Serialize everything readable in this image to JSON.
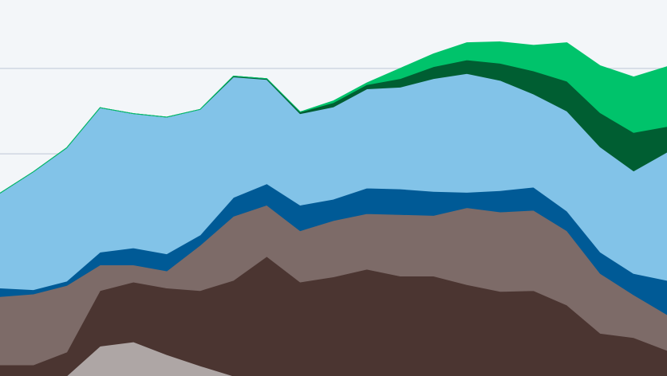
{
  "chart_data": {
    "type": "area",
    "stacked": true,
    "x": [
      0,
      1,
      2,
      3,
      4,
      5,
      6,
      7,
      8,
      9,
      10,
      11,
      12,
      13,
      14,
      15,
      16,
      17,
      18,
      19,
      20
    ],
    "ylim": [
      0,
      4.4
    ],
    "gridlines": [
      2.6,
      3.6
    ],
    "grid": true,
    "legend": "none",
    "series": [
      {
        "color": "#aea6a5",
        "values": [
          0,
          0,
          0,
          0.35,
          0.4,
          0.25,
          0.12,
          0,
          0,
          0,
          0,
          0,
          0,
          0,
          0,
          0,
          0,
          0,
          0,
          0,
          0
        ]
      },
      {
        "color": "#4b3531",
        "values": [
          0.13,
          0.13,
          0.28,
          0.65,
          0.7,
          0.78,
          0.88,
          1.12,
          1.4,
          1.1,
          1.16,
          1.25,
          1.17,
          1.17,
          1.07,
          0.99,
          1.0,
          0.83,
          0.5,
          0.45,
          0.3
        ]
      },
      {
        "color": "#7d6b68",
        "values": [
          0.8,
          0.83,
          0.78,
          0.3,
          0.2,
          0.2,
          0.53,
          0.75,
          0.6,
          0.6,
          0.66,
          0.65,
          0.72,
          0.71,
          0.9,
          0.93,
          0.94,
          0.87,
          0.7,
          0.5,
          0.42
        ]
      },
      {
        "color": "#005a96",
        "values": [
          0.1,
          0.05,
          0.05,
          0.15,
          0.2,
          0.2,
          0.12,
          0.22,
          0.25,
          0.3,
          0.25,
          0.3,
          0.3,
          0.28,
          0.18,
          0.25,
          0.27,
          0.23,
          0.25,
          0.25,
          0.4
        ]
      },
      {
        "color": "#82c3e8",
        "values": [
          1.11,
          1.38,
          1.56,
          1.69,
          1.57,
          1.6,
          1.47,
          1.41,
          1.22,
          1.07,
          1.08,
          1.16,
          1.19,
          1.32,
          1.39,
          1.29,
          1.09,
          1.17,
          1.23,
          1.2,
          1.5
        ]
      },
      {
        "color": "#005e32",
        "values": [
          0,
          0,
          0,
          0,
          0,
          0,
          0,
          0.01,
          0.01,
          0.02,
          0.05,
          0.05,
          0.1,
          0.14,
          0.16,
          0.2,
          0.27,
          0.35,
          0.4,
          0.45,
          0.3
        ]
      },
      {
        "color": "#00c36b",
        "values": [
          0,
          0,
          0,
          0,
          0,
          0,
          0,
          0,
          0,
          0,
          0.02,
          0.02,
          0.12,
          0.15,
          0.2,
          0.25,
          0.3,
          0.45,
          0.55,
          0.65,
          0.7
        ]
      }
    ]
  }
}
